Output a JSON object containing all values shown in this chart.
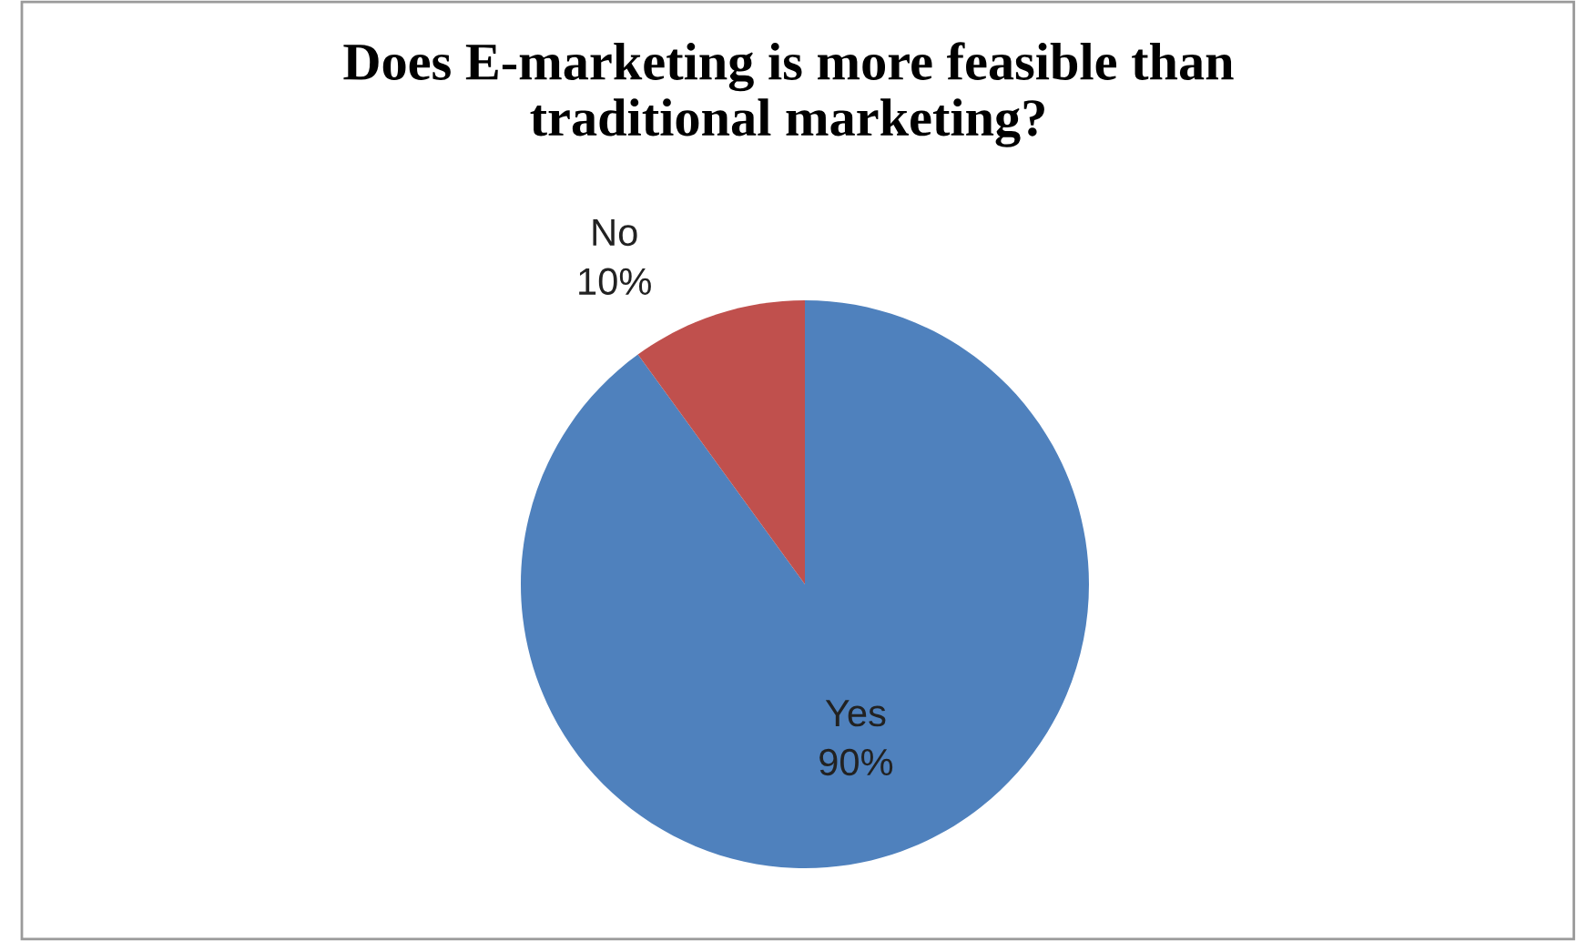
{
  "chart_data": {
    "type": "pie",
    "title": "Does E-marketing is more feasible than traditional marketing?",
    "categories": [
      "Yes",
      "No"
    ],
    "values": [
      90,
      10
    ],
    "colors": [
      "#4f81bd",
      "#c0504d"
    ],
    "value_labels": [
      "90%",
      "10%"
    ],
    "legend": false
  }
}
